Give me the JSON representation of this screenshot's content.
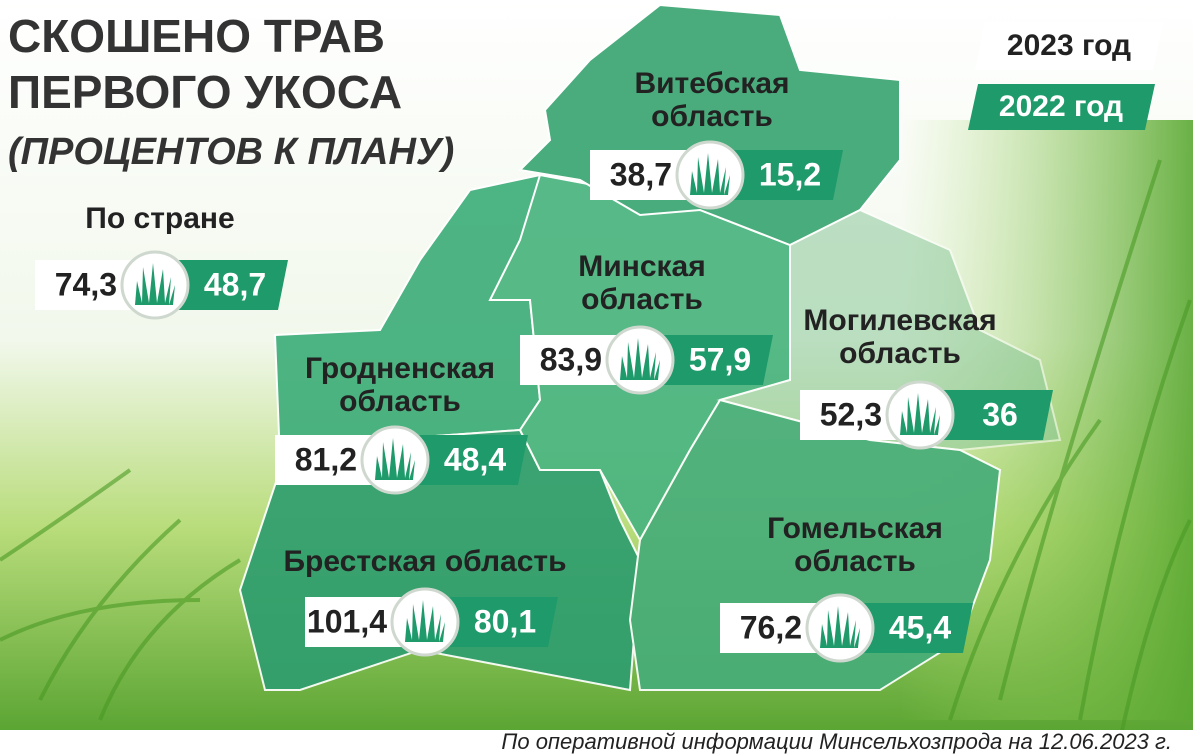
{
  "title": {
    "lines": [
      "СКОШЕНО ТРАВ",
      "ПЕРВОГО УКОСА"
    ],
    "subtitle": "(ПРОЦЕНТОВ К ПЛАНУ)"
  },
  "legend": {
    "current": "2023 год",
    "previous": "2022 год"
  },
  "regions": [
    {
      "name": [
        "По стране"
      ],
      "value_2023": "74,3",
      "value_2022": "48,7"
    },
    {
      "name": [
        "Витебская",
        "область"
      ],
      "value_2023": "38,7",
      "value_2022": "15,2"
    },
    {
      "name": [
        "Минская",
        "область"
      ],
      "value_2023": "83,9",
      "value_2022": "57,9"
    },
    {
      "name": [
        "Могилевская",
        "область"
      ],
      "value_2023": "52,3",
      "value_2022": "36"
    },
    {
      "name": [
        "Гродненская",
        "область"
      ],
      "value_2023": "81,2",
      "value_2022": "48,4"
    },
    {
      "name": [
        "Брестская область"
      ],
      "value_2023": "101,4",
      "value_2022": "80,1"
    },
    {
      "name": [
        "Гомельская",
        "область"
      ],
      "value_2023": "76,2",
      "value_2022": "45,4"
    }
  ],
  "source": "По оперативной информации Минсельхозпрода на 12.06.2023 г."
}
